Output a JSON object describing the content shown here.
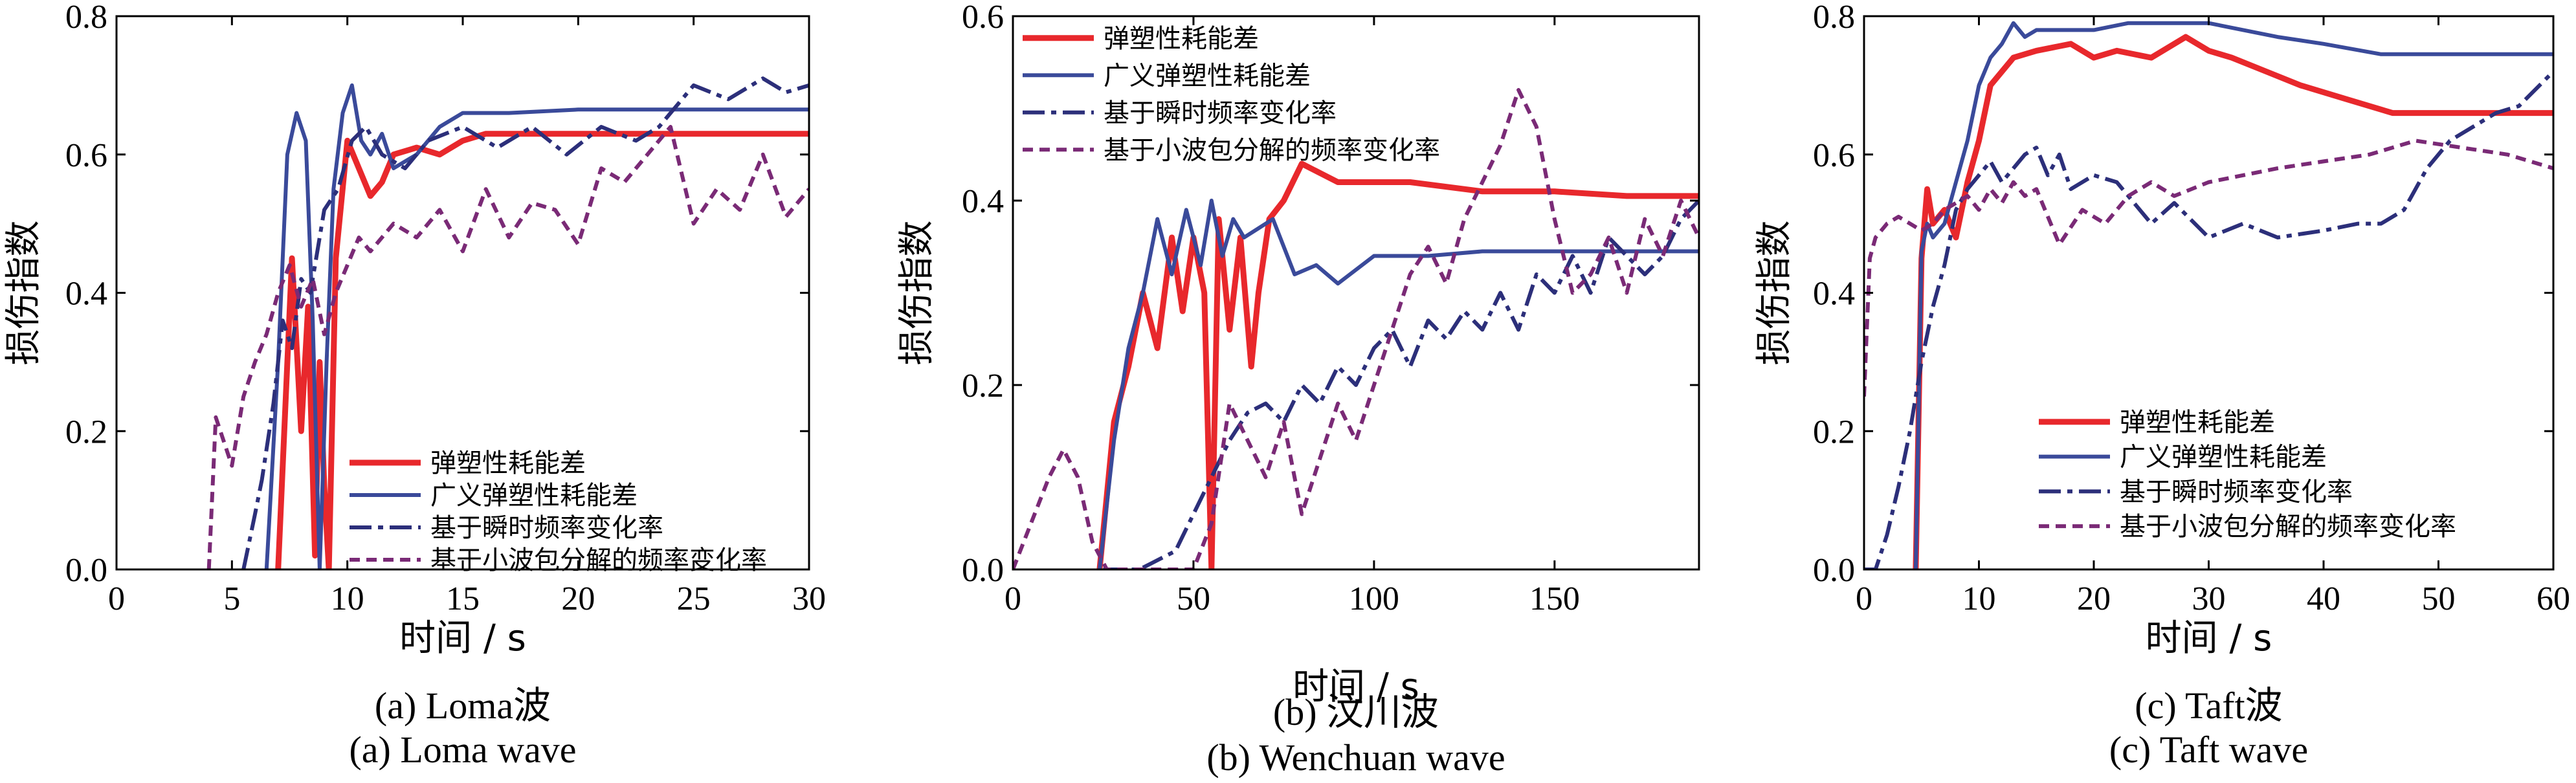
{
  "series_style": [
    {
      "color": "#e8282c",
      "dash": "",
      "width": 9
    },
    {
      "color": "#3a4a9a",
      "dash": "",
      "width": 6
    },
    {
      "color": "#2c2f7a",
      "dash": "34 10 8 10",
      "width": 6
    },
    {
      "color": "#7a2a76",
      "dash": "16 10",
      "width": 6
    }
  ],
  "chart_data": [
    {
      "type": "line",
      "xlabel": "时间 / s",
      "ylabel": "损伤指数",
      "xlim": [
        0,
        30
      ],
      "ylim": [
        0,
        0.8
      ],
      "xticks": [
        0,
        5,
        10,
        15,
        20,
        25,
        30
      ],
      "yticks": [
        0.0,
        0.2,
        0.4,
        0.6,
        0.8
      ],
      "caption_cn": "(a)  Loma波",
      "caption_en": "(a)  Loma wave",
      "legend_position": "bottom-right",
      "series": [
        {
          "name": "弹塑性耗能差",
          "x": [
            7.0,
            7.6,
            8.0,
            8.3,
            8.6,
            8.8,
            9.0,
            9.2,
            9.5,
            10.0,
            10.5,
            11.0,
            11.5,
            12.0,
            13.0,
            14.0,
            15.0,
            16.0,
            18.0,
            20.0,
            22.0,
            25.0,
            30.0
          ],
          "y": [
            0.0,
            0.45,
            0.2,
            0.38,
            0.02,
            0.3,
            0.12,
            0.0,
            0.45,
            0.62,
            0.58,
            0.54,
            0.56,
            0.6,
            0.61,
            0.6,
            0.62,
            0.63,
            0.63,
            0.63,
            0.63,
            0.63,
            0.63
          ]
        },
        {
          "name": "广义弹塑性耗能差",
          "x": [
            6.5,
            7.0,
            7.4,
            7.8,
            8.2,
            8.5,
            8.8,
            9.1,
            9.4,
            9.8,
            10.2,
            10.6,
            11.0,
            11.5,
            12.0,
            13.0,
            14.0,
            15.0,
            17.0,
            20.0,
            25.0,
            30.0
          ],
          "y": [
            0.0,
            0.3,
            0.6,
            0.66,
            0.62,
            0.36,
            0.0,
            0.3,
            0.55,
            0.66,
            0.7,
            0.62,
            0.6,
            0.63,
            0.58,
            0.6,
            0.64,
            0.66,
            0.66,
            0.665,
            0.665,
            0.665
          ]
        },
        {
          "name": "基于瞬时频率变化率",
          "x": [
            5.5,
            6.0,
            6.3,
            6.8,
            7.2,
            7.6,
            8.0,
            8.4,
            9.0,
            9.6,
            10.2,
            10.8,
            11.5,
            12.5,
            13.5,
            15.0,
            16.5,
            18.0,
            19.5,
            21.0,
            22.5,
            23.5,
            25.0,
            26.5,
            28.0,
            29.0,
            30.0
          ],
          "y": [
            0.0,
            0.08,
            0.13,
            0.24,
            0.36,
            0.32,
            0.42,
            0.4,
            0.52,
            0.55,
            0.62,
            0.64,
            0.6,
            0.58,
            0.62,
            0.64,
            0.61,
            0.64,
            0.6,
            0.64,
            0.62,
            0.64,
            0.7,
            0.68,
            0.71,
            0.69,
            0.7
          ]
        },
        {
          "name": "基于小波包分解的频率变化率",
          "x": [
            4.0,
            4.3,
            4.7,
            5.0,
            5.5,
            6.0,
            6.5,
            7.0,
            7.5,
            8.0,
            8.5,
            9.0,
            9.5,
            10.0,
            10.5,
            11.0,
            12.0,
            13.0,
            14.0,
            15.0,
            16.0,
            17.0,
            18.0,
            19.0,
            20.0,
            21.0,
            22.0,
            23.0,
            24.0,
            25.0,
            26.0,
            27.0,
            28.0,
            29.0,
            30.0
          ],
          "y": [
            0.0,
            0.22,
            0.18,
            0.15,
            0.25,
            0.3,
            0.34,
            0.4,
            0.44,
            0.38,
            0.42,
            0.34,
            0.4,
            0.44,
            0.48,
            0.46,
            0.5,
            0.48,
            0.52,
            0.46,
            0.55,
            0.48,
            0.53,
            0.52,
            0.47,
            0.58,
            0.56,
            0.6,
            0.64,
            0.5,
            0.55,
            0.52,
            0.6,
            0.51,
            0.55
          ]
        }
      ]
    },
    {
      "type": "line",
      "xlabel": "时间 / s",
      "ylabel": "损伤指数",
      "xlim": [
        0,
        190
      ],
      "ylim": [
        0,
        0.6
      ],
      "xticks": [
        0,
        50,
        100,
        150
      ],
      "yticks": [
        0.0,
        0.2,
        0.4,
        0.6
      ],
      "caption_cn": "(b)  汶川波",
      "caption_en": "(b)  Wenchuan wave",
      "legend_position": "top-left",
      "series": [
        {
          "name": "弹塑性耗能差",
          "x": [
            24,
            28,
            32,
            36,
            40,
            44,
            47,
            50,
            53,
            55,
            57,
            60,
            63,
            66,
            68,
            71,
            75,
            80,
            85,
            90,
            95,
            100,
            110,
            130,
            150,
            170,
            190
          ],
          "y": [
            0.0,
            0.16,
            0.22,
            0.3,
            0.24,
            0.36,
            0.28,
            0.36,
            0.3,
            0.0,
            0.38,
            0.26,
            0.36,
            0.22,
            0.3,
            0.38,
            0.4,
            0.44,
            0.43,
            0.42,
            0.42,
            0.42,
            0.42,
            0.41,
            0.41,
            0.405,
            0.405
          ]
        },
        {
          "name": "广义弹塑性耗能差",
          "x": [
            24,
            28,
            32,
            36,
            40,
            44,
            48,
            52,
            55,
            58,
            61,
            64,
            68,
            72,
            78,
            84,
            90,
            100,
            115,
            130,
            150,
            170,
            190
          ],
          "y": [
            0.0,
            0.14,
            0.24,
            0.3,
            0.38,
            0.32,
            0.39,
            0.33,
            0.4,
            0.34,
            0.38,
            0.36,
            0.37,
            0.38,
            0.32,
            0.33,
            0.31,
            0.34,
            0.34,
            0.345,
            0.345,
            0.345,
            0.345
          ]
        },
        {
          "name": "基于瞬时频率变化率",
          "x": [
            25,
            35,
            45,
            50,
            55,
            60,
            65,
            70,
            75,
            80,
            85,
            90,
            95,
            100,
            105,
            110,
            115,
            120,
            125,
            130,
            135,
            140,
            145,
            150,
            155,
            160,
            165,
            170,
            175,
            180,
            185,
            190
          ],
          "y": [
            0.0,
            0.0,
            0.02,
            0.06,
            0.1,
            0.14,
            0.17,
            0.18,
            0.16,
            0.2,
            0.18,
            0.22,
            0.2,
            0.24,
            0.26,
            0.22,
            0.27,
            0.25,
            0.28,
            0.26,
            0.3,
            0.26,
            0.32,
            0.3,
            0.34,
            0.3,
            0.36,
            0.34,
            0.32,
            0.34,
            0.38,
            0.4
          ]
        },
        {
          "name": "基于小波包分解的频率变化率",
          "x": [
            0,
            5,
            10,
            14,
            18,
            22,
            26,
            30,
            35,
            40,
            45,
            50,
            55,
            60,
            65,
            70,
            75,
            80,
            85,
            90,
            95,
            100,
            105,
            110,
            115,
            120,
            125,
            130,
            135,
            140,
            145,
            150,
            155,
            160,
            165,
            170,
            175,
            180,
            185,
            190
          ],
          "y": [
            0.0,
            0.05,
            0.1,
            0.13,
            0.1,
            0.03,
            0.0,
            0.0,
            0.0,
            0.0,
            0.0,
            0.0,
            0.05,
            0.18,
            0.14,
            0.1,
            0.16,
            0.06,
            0.12,
            0.18,
            0.14,
            0.2,
            0.26,
            0.32,
            0.35,
            0.31,
            0.38,
            0.42,
            0.46,
            0.52,
            0.48,
            0.38,
            0.3,
            0.32,
            0.36,
            0.3,
            0.38,
            0.34,
            0.4,
            0.36
          ]
        }
      ]
    },
    {
      "type": "line",
      "xlabel": "时间 / s",
      "ylabel": "损伤指数",
      "xlim": [
        0,
        60
      ],
      "ylim": [
        0,
        0.8
      ],
      "xticks": [
        0,
        10,
        20,
        30,
        40,
        50,
        60
      ],
      "yticks": [
        0.0,
        0.2,
        0.4,
        0.6,
        0.8
      ],
      "caption_cn": "(c)  Taft波",
      "caption_en": "(c)  Taft wave",
      "legend_position": "bottom-right",
      "series": [
        {
          "name": "弹塑性耗能差",
          "x": [
            4.5,
            5.0,
            5.5,
            6.0,
            7.0,
            8.0,
            9.0,
            10.0,
            11.0,
            13.0,
            15.0,
            18.0,
            20.0,
            22.0,
            25.0,
            28.0,
            30.0,
            32.0,
            35.0,
            38.0,
            42.0,
            46.0,
            50.0,
            55.0,
            60.0
          ],
          "y": [
            0.0,
            0.45,
            0.55,
            0.5,
            0.52,
            0.48,
            0.56,
            0.62,
            0.7,
            0.74,
            0.75,
            0.76,
            0.74,
            0.75,
            0.74,
            0.77,
            0.75,
            0.74,
            0.72,
            0.7,
            0.68,
            0.66,
            0.66,
            0.66,
            0.66
          ]
        },
        {
          "name": "广义弹塑性耗能差",
          "x": [
            4.5,
            5.0,
            5.5,
            6.0,
            7.0,
            8.0,
            9.0,
            10.0,
            11.0,
            12.0,
            13.0,
            14.0,
            15.0,
            17.0,
            20.0,
            23.0,
            26.0,
            28.0,
            30.0,
            33.0,
            36.0,
            40.0,
            45.0,
            50.0,
            55.0,
            60.0
          ],
          "y": [
            0.0,
            0.46,
            0.5,
            0.48,
            0.5,
            0.56,
            0.62,
            0.7,
            0.74,
            0.76,
            0.79,
            0.77,
            0.78,
            0.78,
            0.78,
            0.79,
            0.79,
            0.79,
            0.79,
            0.78,
            0.77,
            0.76,
            0.745,
            0.745,
            0.745,
            0.745
          ]
        },
        {
          "name": "基于瞬时频率变化率",
          "x": [
            0.0,
            1.0,
            2.0,
            3.0,
            4.0,
            5.0,
            6.0,
            7.0,
            8.0,
            9.0,
            10.0,
            11.0,
            12.0,
            13.0,
            14.0,
            15.0,
            16.0,
            17.0,
            18.0,
            20.0,
            22.0,
            25.0,
            27.0,
            30.0,
            33.0,
            36.0,
            40.0,
            43.0,
            45.0,
            47.0,
            49.0,
            51.0,
            53.0,
            55.0,
            57.0,
            60.0
          ],
          "y": [
            0.0,
            0.0,
            0.05,
            0.12,
            0.2,
            0.3,
            0.38,
            0.44,
            0.52,
            0.55,
            0.57,
            0.59,
            0.56,
            0.58,
            0.6,
            0.61,
            0.57,
            0.6,
            0.55,
            0.57,
            0.56,
            0.5,
            0.53,
            0.48,
            0.5,
            0.48,
            0.49,
            0.5,
            0.5,
            0.52,
            0.58,
            0.62,
            0.64,
            0.66,
            0.67,
            0.72
          ]
        },
        {
          "name": "基于小波包分解的频率变化率",
          "x": [
            0.0,
            0.5,
            1.0,
            2.0,
            3.0,
            4.0,
            5.0,
            6.0,
            7.0,
            8.0,
            9.0,
            10.0,
            11.0,
            12.0,
            13.0,
            14.0,
            15.0,
            17.0,
            19.0,
            21.0,
            23.0,
            25.0,
            27.0,
            30.0,
            33.0,
            36.0,
            40.0,
            44.0,
            48.0,
            52.0,
            56.0,
            58.0,
            60.0
          ],
          "y": [
            0.25,
            0.45,
            0.48,
            0.5,
            0.51,
            0.5,
            0.49,
            0.5,
            0.52,
            0.53,
            0.54,
            0.52,
            0.55,
            0.53,
            0.56,
            0.54,
            0.55,
            0.47,
            0.52,
            0.5,
            0.54,
            0.56,
            0.54,
            0.56,
            0.57,
            0.58,
            0.59,
            0.6,
            0.62,
            0.61,
            0.6,
            0.59,
            0.58
          ]
        }
      ]
    }
  ]
}
